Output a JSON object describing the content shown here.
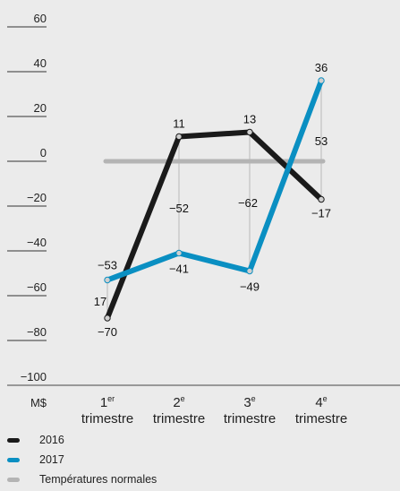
{
  "chart_data": {
    "type": "line",
    "unit_label": "M$",
    "y_ticks": [
      "60",
      "40",
      "20",
      "0",
      "−20",
      "−40",
      "−60",
      "−80",
      "−100"
    ],
    "ylim": [
      -100,
      60
    ],
    "categories": [
      {
        "num": "1",
        "sup": "er",
        "word": "trimestre"
      },
      {
        "num": "2",
        "sup": "e",
        "word": "trimestre"
      },
      {
        "num": "3",
        "sup": "e",
        "word": "trimestre"
      },
      {
        "num": "4",
        "sup": "e",
        "word": "trimestre"
      }
    ],
    "series": [
      {
        "name": "2016",
        "color": "#1a1a1a",
        "values": [
          -70,
          11,
          13,
          -17
        ],
        "labels": [
          "−70",
          "11",
          "13",
          "−17"
        ]
      },
      {
        "name": "2017",
        "color": "#0a8fc2",
        "values": [
          -53,
          -41,
          -49,
          36
        ],
        "labels": [
          "−53",
          "−41",
          "−49",
          "36"
        ]
      },
      {
        "name": "Températures normales",
        "color": "#b4b4b4",
        "values": [
          0,
          0,
          0,
          0
        ],
        "labels": []
      }
    ],
    "differences": [
      "17",
      "−52",
      "−62",
      "53"
    ],
    "grid": false,
    "legend_position": "bottom-left"
  }
}
